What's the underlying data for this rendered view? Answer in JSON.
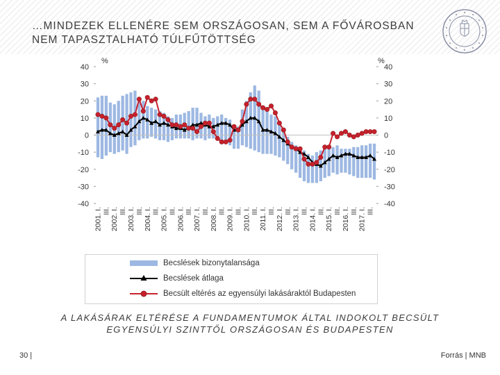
{
  "slide": {
    "title_line1": "…MINDEZEK ELLENÉRE SEM ORSZÁGOSAN, SEM A FŐVÁROSBAN",
    "title_line2": "NEM TAPASZTALHATÓ TÚLFŰTÖTTSÉG",
    "caption_line1": "A LAKÁSÁRAK ELTÉRÉSE A FUNDAMENTUMOK ÁLTAL INDOKOLT BECSÜLT",
    "caption_line2": "EGYENSÚLYI SZINTTŐL ORSZÁGOSAN ÉS BUDAPESTEN",
    "page_number": "30 |",
    "source": "Forrás | MNB",
    "logo_name": "mnb-seal-icon"
  },
  "colors": {
    "band": "#9db8e2",
    "average": "#000000",
    "budapest": "#c8202d",
    "budapest_marker_edge": "#8b1a1a"
  },
  "chart_data": {
    "type": "line",
    "title": "",
    "ylabel_left": "%",
    "ylabel_right": "%",
    "ylim": [
      -40,
      40
    ],
    "yticks": [
      40,
      30,
      20,
      10,
      0,
      -10,
      -20,
      -30,
      -40
    ],
    "x_quarters_start": "2001 Q1",
    "x_tick_labels": [
      "2001. I.",
      "III.",
      "2002. I.",
      "III.",
      "2003. I.",
      "III.",
      "2004. I.",
      "III.",
      "2005. I.",
      "III.",
      "2006. I.",
      "III.",
      "2007. I.",
      "III.",
      "2008. I.",
      "III.",
      "2009. I.",
      "III.",
      "2010. I.",
      "III.",
      "2011. I.",
      "III.",
      "2012. I.",
      "III.",
      "2013. I.",
      "III.",
      "2014. I.",
      "III.",
      "2015. I.",
      "III.",
      "2016. I.",
      "III.",
      "2017. I.",
      "III."
    ],
    "legend": [
      "Becslések bizonytalansága",
      "Becslések átlaga",
      "Becsült eltérés az egyensúlyi lakásáraktól Budapesten"
    ],
    "series": [
      {
        "name": "Becslések bizonytalansága",
        "kind": "band",
        "upper": [
          22,
          23,
          23,
          19,
          18,
          20,
          23,
          24,
          25,
          26,
          22,
          20,
          17,
          16,
          15,
          14,
          13,
          11,
          10,
          12,
          12,
          13,
          14,
          16,
          16,
          13,
          11,
          12,
          10,
          11,
          12,
          10,
          9,
          5,
          5,
          15,
          20,
          25,
          29,
          26,
          17,
          16,
          12,
          11,
          6,
          3,
          -1,
          -4,
          -6,
          -8,
          -9,
          -11,
          -12,
          -10,
          -9,
          -8,
          -6,
          -7,
          -6,
          -8,
          -8,
          -8,
          -7,
          -7,
          -6,
          -6,
          -5,
          -5
        ],
        "lower": [
          -13,
          -14,
          -12,
          -10,
          -11,
          -10,
          -9,
          -11,
          -7,
          -6,
          -3,
          -2,
          -2,
          -1,
          -2,
          -3,
          -3,
          -4,
          -3,
          -2,
          -2,
          -2,
          -2,
          -3,
          -2,
          -2,
          -3,
          -2,
          -2,
          -3,
          -3,
          -4,
          -6,
          -8,
          -8,
          -6,
          -7,
          -8,
          -9,
          -10,
          -11,
          -11,
          -11,
          -12,
          -13,
          -15,
          -17,
          -20,
          -22,
          -25,
          -27,
          -28,
          -28,
          -28,
          -27,
          -25,
          -24,
          -22,
          -23,
          -22,
          -22,
          -23,
          -24,
          -25,
          -25,
          -25,
          -25,
          -26
        ]
      },
      {
        "name": "Becslések átlaga",
        "kind": "line-triangle",
        "values": [
          2,
          3,
          3,
          1,
          0,
          1,
          2,
          0,
          3,
          5,
          8,
          10,
          9,
          7,
          8,
          6,
          7,
          6,
          5,
          4,
          4,
          3,
          4,
          6,
          6,
          7,
          6,
          5,
          5,
          6,
          7,
          7,
          6,
          3,
          3,
          6,
          8,
          10,
          10,
          8,
          3,
          3,
          2,
          1,
          -1,
          -3,
          -5,
          -7,
          -8,
          -10,
          -11,
          -13,
          -16,
          -17,
          -18,
          -16,
          -14,
          -12,
          -13,
          -12,
          -11,
          -11,
          -12,
          -13,
          -13,
          -13,
          -12,
          -14
        ]
      },
      {
        "name": "Becsült eltérés az egyensúlyi lakásáraktól Budapesten",
        "kind": "line-circle",
        "values": [
          12,
          11,
          10,
          6,
          4,
          6,
          9,
          7,
          11,
          12,
          21,
          14,
          22,
          20,
          21,
          12,
          11,
          9,
          6,
          6,
          5,
          6,
          4,
          4,
          2,
          5,
          7,
          7,
          2,
          -2,
          -4,
          -4,
          -3,
          5,
          3,
          8,
          18,
          21,
          21,
          18,
          16,
          15,
          17,
          13,
          7,
          3,
          -4,
          -7,
          -8,
          -8,
          -14,
          -17,
          -17,
          -16,
          -13,
          -7,
          -7,
          1,
          -1,
          1,
          2,
          0,
          -1,
          0,
          1,
          2,
          2,
          2
        ]
      }
    ]
  }
}
